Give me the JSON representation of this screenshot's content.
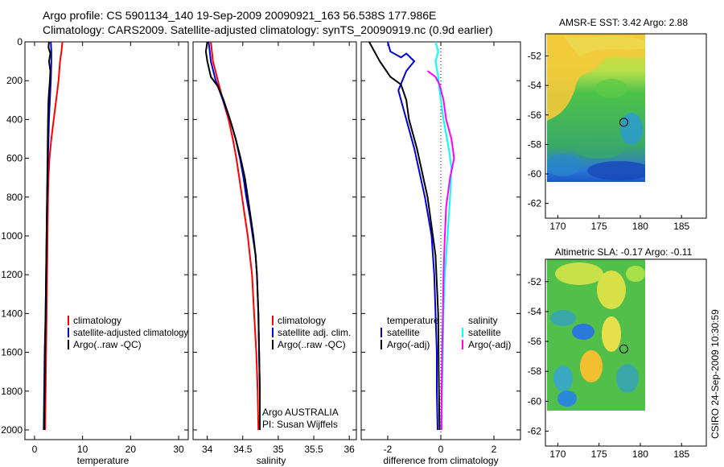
{
  "title_line1": "Argo profile: CS 5901134_140 19-Sep-2009 20090921_163 56.538S 177.986E",
  "title_line2": "Climatology: CARS2009. Satellite-adjusted climatology: synTS_20090919.nc (0.9d earlier)",
  "credit": "CSIRO 24-Sep-2009 10:30:59",
  "colors": {
    "clim": "#ff0000",
    "sat": "#0000dd",
    "argo": "#000000",
    "sal_sat": "#00ffff",
    "sal_argo": "#ff00ff"
  },
  "chart_data": [
    {
      "type": "line",
      "name": "temperature",
      "xlabel": "temperature",
      "xlim": [
        -2,
        32
      ],
      "ylim": [
        2050,
        0
      ],
      "xticks": [
        0,
        10,
        20,
        30
      ],
      "yticks": [
        0,
        200,
        400,
        600,
        800,
        1000,
        1200,
        1400,
        1600,
        1800,
        2000
      ],
      "legend": [
        "climatology",
        "satellite-adjusted climatology",
        "Argo(..raw -QC)"
      ],
      "series": [
        {
          "name": "climatology",
          "color": "#ff0000",
          "points": [
            [
              5.8,
              0
            ],
            [
              5.6,
              50
            ],
            [
              5.3,
              100
            ],
            [
              5.0,
              200
            ],
            [
              4.5,
              300
            ],
            [
              4.0,
              400
            ],
            [
              3.5,
              500
            ],
            [
              3.1,
              600
            ],
            [
              2.9,
              700
            ],
            [
              2.8,
              800
            ],
            [
              2.7,
              1000
            ],
            [
              2.6,
              1200
            ],
            [
              2.5,
              1400
            ],
            [
              2.4,
              1600
            ],
            [
              2.3,
              1800
            ],
            [
              2.2,
              2000
            ]
          ]
        },
        {
          "name": "satellite-adjusted climatology",
          "color": "#0000dd",
          "points": [
            [
              3.4,
              0
            ],
            [
              3.5,
              50
            ],
            [
              3.5,
              100
            ],
            [
              3.4,
              200
            ],
            [
              3.2,
              300
            ],
            [
              3.0,
              400
            ],
            [
              2.8,
              600
            ],
            [
              2.6,
              800
            ],
            [
              2.5,
              1000
            ],
            [
              2.4,
              1200
            ],
            [
              2.3,
              1400
            ],
            [
              2.1,
              1600
            ],
            [
              2.0,
              1800
            ],
            [
              1.9,
              2000
            ]
          ]
        },
        {
          "name": "Argo(..raw -QC)",
          "color": "#000000",
          "points": [
            [
              3.0,
              0
            ],
            [
              2.9,
              30
            ],
            [
              3.3,
              60
            ],
            [
              3.0,
              100
            ],
            [
              3.3,
              150
            ],
            [
              3.2,
              200
            ],
            [
              3.0,
              260
            ],
            [
              2.9,
              300
            ],
            [
              2.8,
              400
            ],
            [
              2.7,
              600
            ],
            [
              2.6,
              800
            ],
            [
              2.5,
              1000
            ],
            [
              2.4,
              1200
            ],
            [
              2.3,
              1400
            ],
            [
              2.2,
              1600
            ],
            [
              2.1,
              1800
            ],
            [
              2.0,
              2000
            ]
          ]
        }
      ]
    },
    {
      "type": "line",
      "name": "salinity",
      "xlabel": "salinity",
      "xlim": [
        33.8,
        36.1
      ],
      "ylim": [
        2050,
        0
      ],
      "xticks": [
        34,
        34.5,
        35,
        35.5,
        36
      ],
      "legend": [
        "climatology",
        "satellite adj. clim.",
        "Argo(..raw -QC)"
      ],
      "annotation": [
        "Argo AUSTRALIA",
        "PI: Susan Wijffels"
      ],
      "series": [
        {
          "name": "climatology",
          "color": "#ff0000",
          "points": [
            [
              34.05,
              0
            ],
            [
              34.08,
              100
            ],
            [
              34.15,
              200
            ],
            [
              34.22,
              300
            ],
            [
              34.3,
              400
            ],
            [
              34.36,
              500
            ],
            [
              34.41,
              600
            ],
            [
              34.45,
              700
            ],
            [
              34.49,
              800
            ],
            [
              34.53,
              900
            ],
            [
              34.57,
              1000
            ],
            [
              34.6,
              1100
            ],
            [
              34.63,
              1200
            ],
            [
              34.66,
              1400
            ],
            [
              34.69,
              1600
            ],
            [
              34.71,
              1800
            ],
            [
              34.72,
              2000
            ]
          ]
        },
        {
          "name": "satellite adj. clim.",
          "color": "#0000dd",
          "points": [
            [
              34.02,
              0
            ],
            [
              34.05,
              100
            ],
            [
              34.12,
              200
            ],
            [
              34.22,
              300
            ],
            [
              34.32,
              400
            ],
            [
              34.4,
              500
            ],
            [
              34.46,
              600
            ],
            [
              34.51,
              700
            ],
            [
              34.55,
              800
            ],
            [
              34.6,
              900
            ],
            [
              34.64,
              1000
            ],
            [
              34.68,
              1100
            ],
            [
              34.7,
              1200
            ],
            [
              34.72,
              1400
            ],
            [
              34.73,
              1600
            ],
            [
              34.74,
              1800
            ],
            [
              34.74,
              2000
            ]
          ]
        },
        {
          "name": "Argo(..raw -QC)",
          "color": "#000000",
          "points": [
            [
              34.0,
              0
            ],
            [
              33.98,
              50
            ],
            [
              34.0,
              100
            ],
            [
              34.05,
              180
            ],
            [
              34.15,
              230
            ],
            [
              34.23,
              300
            ],
            [
              34.32,
              400
            ],
            [
              34.4,
              500
            ],
            [
              34.47,
              600
            ],
            [
              34.53,
              700
            ],
            [
              34.57,
              800
            ],
            [
              34.61,
              900
            ],
            [
              34.65,
              1000
            ],
            [
              34.68,
              1100
            ],
            [
              34.7,
              1200
            ],
            [
              34.72,
              1400
            ],
            [
              34.73,
              1600
            ],
            [
              34.74,
              1800
            ],
            [
              34.74,
              2000
            ]
          ]
        }
      ]
    },
    {
      "type": "line",
      "name": "difference",
      "xlabel": "difference from climatology",
      "xlim": [
        -3,
        3.0
      ],
      "ylim": [
        2050,
        0
      ],
      "xticks": [
        -2,
        0,
        2
      ],
      "legend_left_header": "temperature",
      "legend_right_header": "salinity",
      "legend_left": [
        "satellite",
        "Argo(-adj)"
      ],
      "legend_right": [
        "satellite",
        "Argo(-adj)"
      ],
      "series": [
        {
          "name": "temperature satellite",
          "color": "#0000dd",
          "points": [
            [
              -2.0,
              0
            ],
            [
              -1.9,
              50
            ],
            [
              -1.5,
              80
            ],
            [
              -1.3,
              60
            ],
            [
              -1.0,
              100
            ],
            [
              -1.3,
              150
            ],
            [
              -1.6,
              250
            ],
            [
              -1.4,
              350
            ],
            [
              -1.0,
              550
            ],
            [
              -0.6,
              800
            ],
            [
              -0.35,
              1000
            ],
            [
              -0.25,
              1200
            ],
            [
              -0.2,
              1400
            ],
            [
              -0.15,
              1600
            ],
            [
              -0.15,
              1800
            ],
            [
              -0.12,
              2000
            ]
          ]
        },
        {
          "name": "temperature Argo(-adj)",
          "color": "#000000",
          "points": [
            [
              -2.7,
              0
            ],
            [
              -2.3,
              100
            ],
            [
              -1.9,
              180
            ],
            [
              -1.5,
              220
            ],
            [
              -1.3,
              300
            ],
            [
              -1.2,
              400
            ],
            [
              -0.9,
              550
            ],
            [
              -0.5,
              800
            ],
            [
              -0.2,
              1100
            ],
            [
              -0.1,
              1400
            ],
            [
              -0.08,
              1700
            ],
            [
              -0.05,
              2000
            ]
          ]
        },
        {
          "name": "salinity satellite",
          "color": "#00ffff",
          "points": [
            [
              -0.2,
              0
            ],
            [
              -0.1,
              50
            ],
            [
              -0.2,
              100
            ],
            [
              -0.1,
              180
            ],
            [
              -0.05,
              250
            ],
            [
              0.1,
              400
            ],
            [
              0.3,
              550
            ],
            [
              0.4,
              650
            ],
            [
              0.35,
              800
            ],
            [
              0.25,
              1000
            ],
            [
              0.15,
              1200
            ],
            [
              0.1,
              1400
            ],
            [
              0.08,
              1600
            ],
            [
              0.05,
              1800
            ],
            [
              0.03,
              2000
            ]
          ]
        },
        {
          "name": "salinity Argo(-adj)",
          "color": "#ff00ff",
          "points": [
            [
              -0.5,
              150
            ],
            [
              -0.2,
              180
            ],
            [
              -0.05,
              220
            ],
            [
              0.1,
              300
            ],
            [
              0.2,
              400
            ],
            [
              0.4,
              500
            ],
            [
              0.5,
              600
            ],
            [
              0.35,
              700
            ],
            [
              0.2,
              850
            ],
            [
              0.15,
              1000
            ],
            [
              0.1,
              1200
            ],
            [
              0.08,
              1400
            ],
            [
              0.05,
              1600
            ],
            [
              0.03,
              1800
            ],
            [
              0.02,
              2000
            ]
          ]
        }
      ]
    },
    {
      "type": "heatmap",
      "name": "sst-map",
      "title": "AMSR-E SST: 3.42 Argo: 2.88",
      "xlim": [
        168.5,
        188
      ],
      "ylim": [
        -63,
        -50.5
      ],
      "xticks": [
        170,
        175,
        180,
        185
      ],
      "yticks": [
        -52,
        -54,
        -56,
        -58,
        -60,
        -62
      ],
      "marker": [
        178,
        -56.5
      ]
    },
    {
      "type": "heatmap",
      "name": "sla-map",
      "title": "Altimetric SLA: -0.17 Argo: -0.11",
      "xlim": [
        168.5,
        188
      ],
      "ylim": [
        -63,
        -50.5
      ],
      "xticks": [
        170,
        175,
        180,
        185
      ],
      "yticks": [
        -52,
        -54,
        -56,
        -58,
        -60,
        -62
      ],
      "marker": [
        178,
        -56.5
      ]
    }
  ]
}
